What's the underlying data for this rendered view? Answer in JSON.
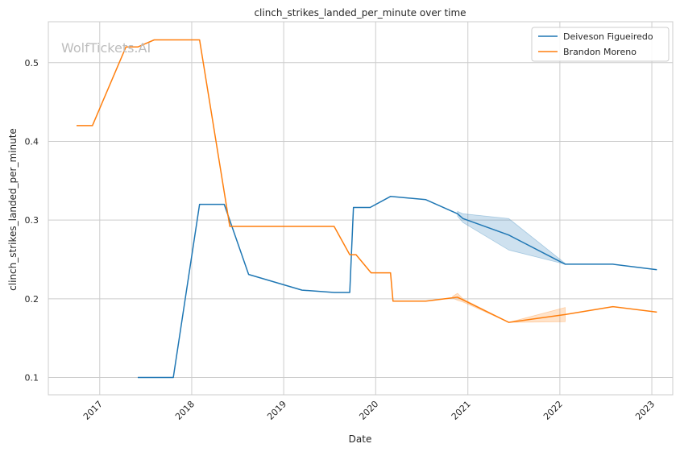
{
  "chart_data": {
    "type": "line",
    "title": "clinch_strikes_landed_per_minute over time",
    "xlabel": "Date",
    "ylabel": "clinch_strikes_landed_per_minute",
    "watermark": "WolfTickets.AI",
    "x_ticks": [
      "2017",
      "2018",
      "2019",
      "2020",
      "2021",
      "2022",
      "2023"
    ],
    "y_ticks": [
      "0.1",
      "0.2",
      "0.3",
      "0.4",
      "0.5"
    ],
    "xlim": [
      "2016-06-11",
      "2023-03-25"
    ],
    "ylim": [
      0.078,
      0.552
    ],
    "grid": true,
    "legend_position": "top-right",
    "series": [
      {
        "name": "Deiveson Figueiredo",
        "color": "#1f77b4",
        "points": [
          [
            "2017-06-01",
            0.1
          ],
          [
            "2017-10-20",
            0.1
          ],
          [
            "2018-02-01",
            0.32
          ],
          [
            "2018-05-10",
            0.32
          ],
          [
            "2018-08-15",
            0.231
          ],
          [
            "2019-03-15",
            0.211
          ],
          [
            "2019-07-20",
            0.208
          ],
          [
            "2019-09-20",
            0.208
          ],
          [
            "2019-10-05",
            0.316
          ],
          [
            "2019-12-10",
            0.316
          ],
          [
            "2020-02-29",
            0.33
          ],
          [
            "2020-07-18",
            0.326
          ],
          [
            "2020-11-21",
            0.308
          ],
          [
            "2020-12-12",
            0.302
          ],
          [
            "2021-06-12",
            0.281
          ],
          [
            "2022-01-22",
            0.244
          ],
          [
            "2022-07-30",
            0.244
          ],
          [
            "2023-01-21",
            0.237
          ]
        ],
        "band": [
          [
            "2020-11-21",
            0.311,
            0.305
          ],
          [
            "2020-12-12",
            0.308,
            0.297
          ],
          [
            "2021-06-12",
            0.302,
            0.262
          ],
          [
            "2022-01-22",
            0.245,
            0.244
          ]
        ]
      },
      {
        "name": "Brandon Moreno",
        "color": "#ff7f0e",
        "points": [
          [
            "2016-10-01",
            0.42
          ],
          [
            "2016-12-03",
            0.42
          ],
          [
            "2017-04-15",
            0.52
          ],
          [
            "2017-06-01",
            0.52
          ],
          [
            "2017-08-05",
            0.529
          ],
          [
            "2018-02-01",
            0.529
          ],
          [
            "2018-06-01",
            0.292
          ],
          [
            "2019-07-20",
            0.292
          ],
          [
            "2019-09-20",
            0.256
          ],
          [
            "2019-10-15",
            0.256
          ],
          [
            "2019-12-14",
            0.233
          ],
          [
            "2020-02-29",
            0.233
          ],
          [
            "2020-03-10",
            0.197
          ],
          [
            "2020-07-18",
            0.197
          ],
          [
            "2020-11-21",
            0.202
          ],
          [
            "2021-06-12",
            0.17
          ],
          [
            "2022-01-22",
            0.18
          ],
          [
            "2022-07-30",
            0.19
          ],
          [
            "2023-01-21",
            0.183
          ]
        ],
        "band": [
          [
            "2020-11-01",
            0.203,
            0.201
          ],
          [
            "2020-11-21",
            0.207,
            0.198
          ],
          [
            "2020-12-12",
            0.2,
            0.196
          ],
          [
            "2021-06-12",
            0.17,
            0.17
          ],
          [
            "2022-01-22",
            0.189,
            0.171
          ]
        ]
      }
    ]
  }
}
